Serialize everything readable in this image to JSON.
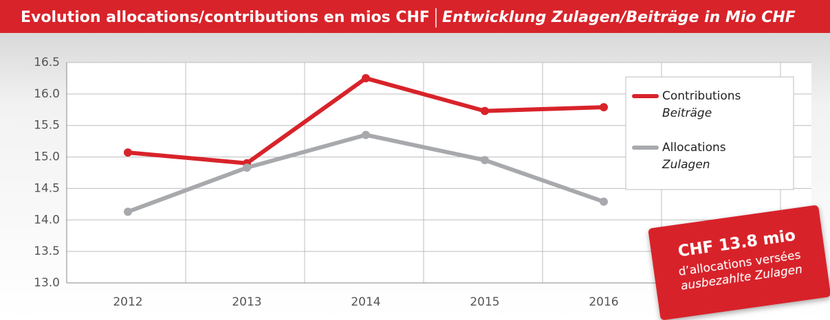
{
  "chart_data": {
    "type": "line",
    "title": "Evolution allocations/contributions en mios CHF",
    "subtitle": "Entwicklung Zulagen/Beiträge in Mio CHF",
    "categories": [
      "2012",
      "2013",
      "2014",
      "2015",
      "2016"
    ],
    "series": [
      {
        "name": "Contributions",
        "name_de": "Beiträge",
        "color": "#d8232a",
        "values": [
          15.07,
          14.9,
          16.25,
          15.73,
          15.79
        ]
      },
      {
        "name": "Allocations",
        "name_de": "Zulagen",
        "color": "#a7a9ac",
        "values": [
          14.13,
          14.83,
          15.35,
          14.95,
          14.29
        ]
      }
    ],
    "ylim": [
      13,
      16.5
    ],
    "yticks": [
      {
        "value": 13,
        "label": "13.0"
      },
      13.5,
      {
        "value": 14,
        "label": "14.0"
      },
      14.5,
      {
        "value": 15,
        "label": "15.0"
      },
      15.5,
      {
        "value": 16,
        "label": "16.0"
      },
      16.5
    ],
    "grid": true,
    "legend": "upper right",
    "annotation": {
      "headline": "CHF 13.8 mio",
      "line1": "d’allocations versées",
      "line2": "ausbezahlte Zulagen"
    }
  }
}
